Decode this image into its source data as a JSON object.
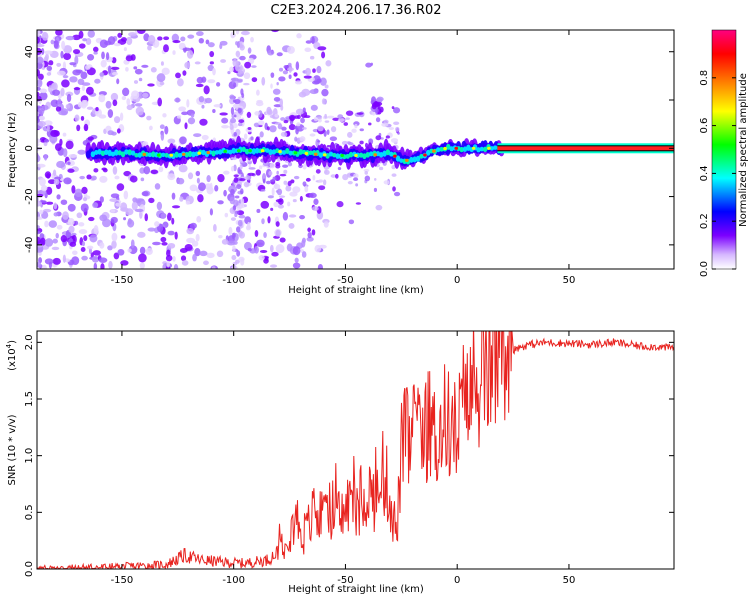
{
  "figure_title": "C2E3.2024.206.17.36.R02",
  "colors": {
    "snr_line": "#e8231f",
    "axis": "#000000",
    "background": "#ffffff"
  },
  "chart_data": [
    {
      "type": "heatmap",
      "title": "C2E3.2024.206.17.36.R02",
      "xlabel": "Height of straight line (km)",
      "ylabel": "Frequency (Hz)",
      "xlim": [
        -188,
        97
      ],
      "ylim": [
        -50,
        49
      ],
      "xticks": [
        -150,
        -100,
        -50,
        0,
        50
      ],
      "yticks": [
        -40,
        -20,
        0,
        20,
        40
      ],
      "colorbar": {
        "label": "Normalized spectral amplitude",
        "range": [
          0.0,
          1.0
        ],
        "ticks": [
          0.0,
          0.2,
          0.4,
          0.6,
          0.8
        ],
        "tick_labels": [
          "0.0",
          "0.2",
          "0.4",
          "0.6",
          "0.8"
        ],
        "colormap": [
          "#ffffff",
          "#7b00ff",
          "#0000ff",
          "#00ffff",
          "#00ff00",
          "#ffff00",
          "#ff8000",
          "#ff0000",
          "#ff0080"
        ]
      },
      "ridge": {
        "description_points_x": [
          -165,
          -150,
          -130,
          -115,
          -100,
          -85,
          -70,
          -55,
          -40,
          -30,
          -25,
          -20,
          -15,
          -10,
          -5,
          0,
          10,
          20,
          97
        ],
        "description_points_y": [
          -2,
          -2,
          -3,
          -2,
          -1,
          -1,
          -2,
          -3,
          -3,
          -2,
          -5,
          -5,
          -3,
          -1,
          0,
          0,
          0,
          0,
          0
        ]
      }
    },
    {
      "type": "line",
      "xlabel": "Height of straight line (km)",
      "ylabel": "SNR (10 * v/v)",
      "scale_label": "(x10",
      "scale_exponent": "4",
      "xlim": [
        -188,
        97
      ],
      "ylim": [
        0.0,
        2.1
      ],
      "xticks": [
        -150,
        -100,
        -50,
        0,
        50
      ],
      "yticks": [
        0.0,
        0.5,
        1.0,
        1.5,
        2.0
      ],
      "ytick_labels": [
        "0.0",
        "0.5",
        "1.0",
        "1.5",
        "2.0"
      ],
      "series": [
        {
          "name": "SNR",
          "x": [
            -188,
            -170,
            -150,
            -130,
            -122,
            -115,
            -105,
            -95,
            -85,
            -80,
            -76,
            -72,
            -68,
            -64,
            -60,
            -56,
            -52,
            -48,
            -44,
            -40,
            -36,
            -32,
            -29,
            -27,
            -25,
            -23,
            -21,
            -19,
            -17,
            -15,
            -12,
            -9,
            -6,
            -3,
            0,
            3,
            5,
            7,
            9,
            11,
            13,
            15,
            18,
            22,
            27,
            32,
            40,
            50,
            60,
            70,
            80,
            90,
            97
          ],
          "y": [
            0.0,
            0.01,
            0.02,
            0.04,
            0.12,
            0.08,
            0.06,
            0.05,
            0.08,
            0.15,
            0.35,
            0.45,
            0.3,
            0.5,
            0.4,
            0.55,
            0.45,
            0.6,
            0.5,
            0.7,
            0.6,
            0.8,
            0.5,
            0.3,
            1.05,
            1.2,
            1.05,
            1.3,
            1.1,
            1.2,
            1.3,
            1.1,
            1.35,
            1.25,
            1.2,
            1.5,
            1.4,
            1.7,
            1.55,
            1.75,
            1.7,
            1.8,
            1.85,
            1.9,
            1.95,
            1.98,
            2.0,
            1.99,
            1.98,
            2.0,
            1.97,
            1.96,
            1.95
          ]
        }
      ]
    }
  ]
}
